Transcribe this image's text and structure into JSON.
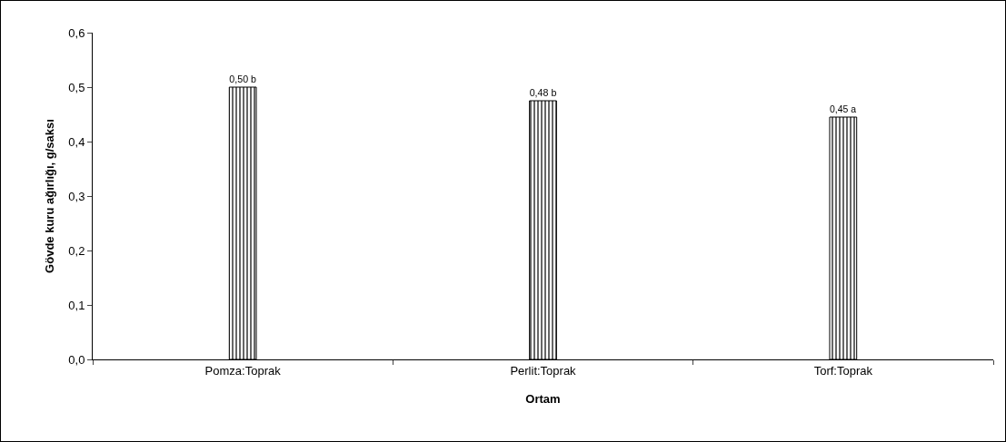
{
  "chart_data": {
    "type": "bar",
    "xlabel": "Ortam",
    "ylabel": "Gövde kuru ağırlığı, g/saksı",
    "categories": [
      "Pomza:Toprak",
      "Perlit:Toprak",
      "Torf:Toprak"
    ],
    "values": [
      0.5,
      0.475,
      0.445
    ],
    "value_labels": [
      "0,50 b",
      "0,48 b",
      "0,45 a"
    ],
    "color": "#000000",
    "ylim": [
      0,
      0.6
    ],
    "yticks": [
      {
        "value": 0,
        "label": "0,0"
      },
      {
        "value": 0.1,
        "label": "0,1"
      },
      {
        "value": 0.2,
        "label": "0,2"
      },
      {
        "value": 0.3,
        "label": "0,3"
      },
      {
        "value": 0.4,
        "label": "0,4"
      },
      {
        "value": 0.5,
        "label": "0,5"
      },
      {
        "value": 0.6,
        "label": "0,6"
      }
    ],
    "grid": false
  }
}
